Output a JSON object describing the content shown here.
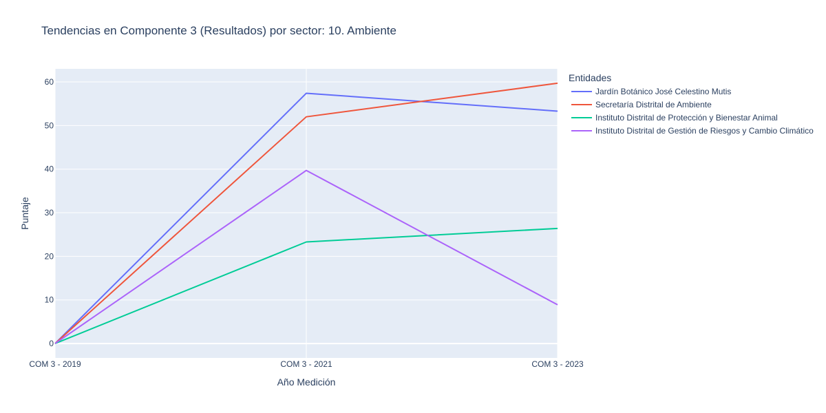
{
  "chart_data": {
    "type": "line",
    "title": "Tendencias en Componente 3 (Resultados) por sector: 10. Ambiente",
    "xlabel": "Año Medición",
    "ylabel": "Puntaje",
    "categories": [
      "COM 3 - 2019",
      "COM 3 - 2021",
      "COM 3 - 2023"
    ],
    "ylim": [
      -3.3,
      63
    ],
    "yticks": [
      0,
      10,
      20,
      30,
      40,
      50,
      60
    ],
    "grid": true,
    "legend": {
      "title": "Entidades",
      "position": "right"
    },
    "series": [
      {
        "name": "Jardín Botánico José Celestino Mutis",
        "color": "#636efa",
        "values": [
          0,
          57.4,
          53.3
        ]
      },
      {
        "name": "Secretaría Distrital de Ambiente",
        "color": "#ef553b",
        "values": [
          0,
          52.0,
          59.7
        ]
      },
      {
        "name": "Instituto Distrital de Protección y Bienestar Animal",
        "color": "#00cc96",
        "values": [
          0,
          23.3,
          26.4
        ]
      },
      {
        "name": "Instituto Distrital de Gestión de Riesgos y Cambio Climático",
        "color": "#ab63fa",
        "values": [
          0,
          39.7,
          8.9
        ]
      }
    ],
    "colors": {
      "plot_background": "#e5ecf6",
      "grid": "#ffffff",
      "text": "#2a3f5f"
    }
  }
}
